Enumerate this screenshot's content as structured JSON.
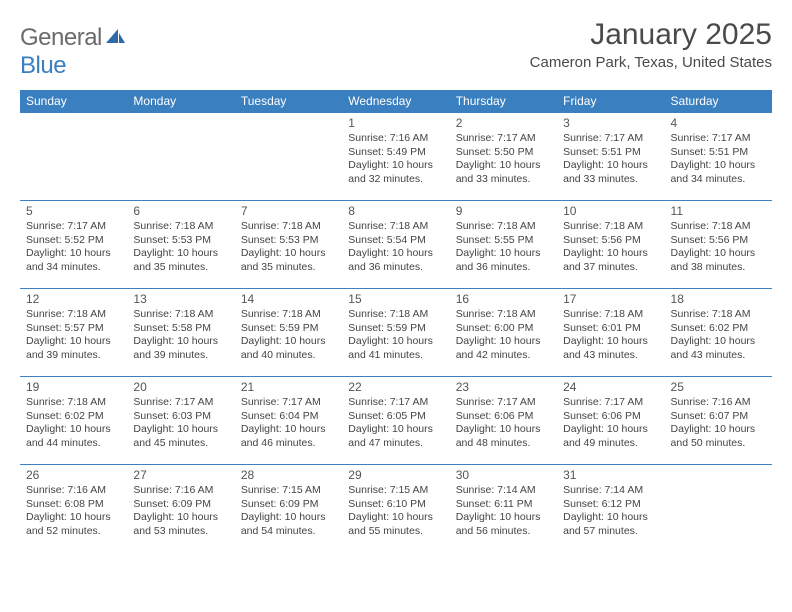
{
  "logo": {
    "text1": "General",
    "text2": "Blue"
  },
  "header": {
    "month_title": "January 2025",
    "location": "Cameron Park, Texas, United States"
  },
  "colors": {
    "accent": "#3a7fbf",
    "text": "#444444",
    "bg": "#ffffff"
  },
  "calendar": {
    "type": "table",
    "day_names": [
      "Sunday",
      "Monday",
      "Tuesday",
      "Wednesday",
      "Thursday",
      "Friday",
      "Saturday"
    ],
    "weeks": [
      [
        null,
        null,
        null,
        {
          "n": "1",
          "sunrise": "7:16 AM",
          "sunset": "5:49 PM",
          "dh": "10",
          "dm": "32"
        },
        {
          "n": "2",
          "sunrise": "7:17 AM",
          "sunset": "5:50 PM",
          "dh": "10",
          "dm": "33"
        },
        {
          "n": "3",
          "sunrise": "7:17 AM",
          "sunset": "5:51 PM",
          "dh": "10",
          "dm": "33"
        },
        {
          "n": "4",
          "sunrise": "7:17 AM",
          "sunset": "5:51 PM",
          "dh": "10",
          "dm": "34"
        }
      ],
      [
        {
          "n": "5",
          "sunrise": "7:17 AM",
          "sunset": "5:52 PM",
          "dh": "10",
          "dm": "34"
        },
        {
          "n": "6",
          "sunrise": "7:18 AM",
          "sunset": "5:53 PM",
          "dh": "10",
          "dm": "35"
        },
        {
          "n": "7",
          "sunrise": "7:18 AM",
          "sunset": "5:53 PM",
          "dh": "10",
          "dm": "35"
        },
        {
          "n": "8",
          "sunrise": "7:18 AM",
          "sunset": "5:54 PM",
          "dh": "10",
          "dm": "36"
        },
        {
          "n": "9",
          "sunrise": "7:18 AM",
          "sunset": "5:55 PM",
          "dh": "10",
          "dm": "36"
        },
        {
          "n": "10",
          "sunrise": "7:18 AM",
          "sunset": "5:56 PM",
          "dh": "10",
          "dm": "37"
        },
        {
          "n": "11",
          "sunrise": "7:18 AM",
          "sunset": "5:56 PM",
          "dh": "10",
          "dm": "38"
        }
      ],
      [
        {
          "n": "12",
          "sunrise": "7:18 AM",
          "sunset": "5:57 PM",
          "dh": "10",
          "dm": "39"
        },
        {
          "n": "13",
          "sunrise": "7:18 AM",
          "sunset": "5:58 PM",
          "dh": "10",
          "dm": "39"
        },
        {
          "n": "14",
          "sunrise": "7:18 AM",
          "sunset": "5:59 PM",
          "dh": "10",
          "dm": "40"
        },
        {
          "n": "15",
          "sunrise": "7:18 AM",
          "sunset": "5:59 PM",
          "dh": "10",
          "dm": "41"
        },
        {
          "n": "16",
          "sunrise": "7:18 AM",
          "sunset": "6:00 PM",
          "dh": "10",
          "dm": "42"
        },
        {
          "n": "17",
          "sunrise": "7:18 AM",
          "sunset": "6:01 PM",
          "dh": "10",
          "dm": "43"
        },
        {
          "n": "18",
          "sunrise": "7:18 AM",
          "sunset": "6:02 PM",
          "dh": "10",
          "dm": "43"
        }
      ],
      [
        {
          "n": "19",
          "sunrise": "7:18 AM",
          "sunset": "6:02 PM",
          "dh": "10",
          "dm": "44"
        },
        {
          "n": "20",
          "sunrise": "7:17 AM",
          "sunset": "6:03 PM",
          "dh": "10",
          "dm": "45"
        },
        {
          "n": "21",
          "sunrise": "7:17 AM",
          "sunset": "6:04 PM",
          "dh": "10",
          "dm": "46"
        },
        {
          "n": "22",
          "sunrise": "7:17 AM",
          "sunset": "6:05 PM",
          "dh": "10",
          "dm": "47"
        },
        {
          "n": "23",
          "sunrise": "7:17 AM",
          "sunset": "6:06 PM",
          "dh": "10",
          "dm": "48"
        },
        {
          "n": "24",
          "sunrise": "7:17 AM",
          "sunset": "6:06 PM",
          "dh": "10",
          "dm": "49"
        },
        {
          "n": "25",
          "sunrise": "7:16 AM",
          "sunset": "6:07 PM",
          "dh": "10",
          "dm": "50"
        }
      ],
      [
        {
          "n": "26",
          "sunrise": "7:16 AM",
          "sunset": "6:08 PM",
          "dh": "10",
          "dm": "52"
        },
        {
          "n": "27",
          "sunrise": "7:16 AM",
          "sunset": "6:09 PM",
          "dh": "10",
          "dm": "53"
        },
        {
          "n": "28",
          "sunrise": "7:15 AM",
          "sunset": "6:09 PM",
          "dh": "10",
          "dm": "54"
        },
        {
          "n": "29",
          "sunrise": "7:15 AM",
          "sunset": "6:10 PM",
          "dh": "10",
          "dm": "55"
        },
        {
          "n": "30",
          "sunrise": "7:14 AM",
          "sunset": "6:11 PM",
          "dh": "10",
          "dm": "56"
        },
        {
          "n": "31",
          "sunrise": "7:14 AM",
          "sunset": "6:12 PM",
          "dh": "10",
          "dm": "57"
        },
        null
      ]
    ],
    "labels": {
      "sunrise": "Sunrise:",
      "sunset": "Sunset:",
      "daylight1": "Daylight:",
      "hours": "hours",
      "and": "and",
      "minutes": "minutes."
    }
  }
}
